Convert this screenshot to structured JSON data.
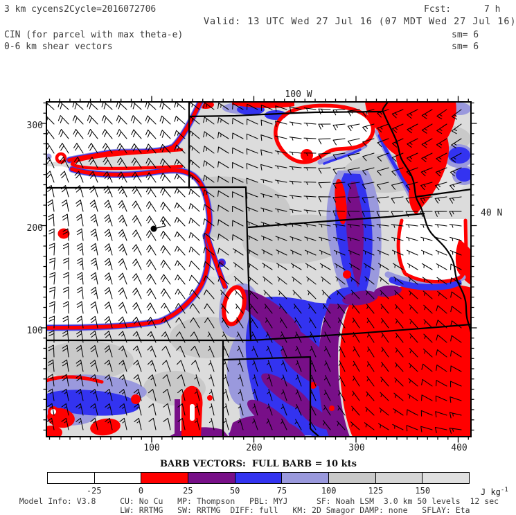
{
  "header": {
    "model": "3 km cycens2",
    "cycle": "Cycle=2016072706",
    "fcst_label": "Fcst:",
    "fcst_value": "7 h",
    "valid": "Valid: 13 UTC Wed 27 Jul 16 (07 MDT Wed 27 Jul 16)",
    "field_title": "CIN (for parcel with max theta-e)",
    "field_subtitle": "0-6 km shear vectors",
    "sm_top": "sm= 6",
    "sm_bottom": "sm= 6"
  },
  "map": {
    "top_axis_label": "100 W",
    "right_axis_label": "40 N",
    "x_tick_labels": [
      "100",
      "200",
      "300",
      "400"
    ],
    "y_tick_labels": [
      "300",
      "200",
      "100"
    ],
    "station_marker": "black-dot-with-barb",
    "wind_field": {
      "full_barb_kts": 10,
      "grid_cols": 29,
      "grid_rows": 23
    }
  },
  "legend": {
    "barb_title": "BARB VECTORS:  FULL BARB = 10 kts",
    "units_text": "J kg",
    "units_exponent": "-1",
    "tick_labels": [
      "-25",
      "0",
      "25",
      "50",
      "75",
      "100",
      "125",
      "150"
    ],
    "segment_colors": [
      "#ffffff",
      "#ffffff",
      "#ff0000",
      "#780f88",
      "#3333f0",
      "#9a99dd",
      "#c9c9c9",
      "#d6d6d6",
      "#e0e0e0"
    ],
    "segment_ranges": [
      "< -25",
      "-25 to 0",
      "0 to 25",
      "25 to 50",
      "50 to 75",
      "75 to 100",
      "100 to 125",
      "125 to 150",
      "> 150"
    ]
  },
  "model_info": {
    "line1": "    Model Info: V3.8     CU: No Cu   MP: Thompson   PBL: MYJ      SF: Noah LSM  3.0 km 50 levels  12 sec",
    "line2": "                         LW: RRTMG   SW: RRTMG  DIFF: full   KM: 2D Smagor DAMP: none   SFLAY: Eta"
  },
  "colors": {
    "red": "#ff0000",
    "purple": "#780f88",
    "blue": "#3333f0",
    "lavender": "#9a99dd",
    "gray_base": "#dcdcdc",
    "gray_dark": "#c9c9c9",
    "gray_light": "#e3e3e3",
    "ink": "#000000"
  }
}
